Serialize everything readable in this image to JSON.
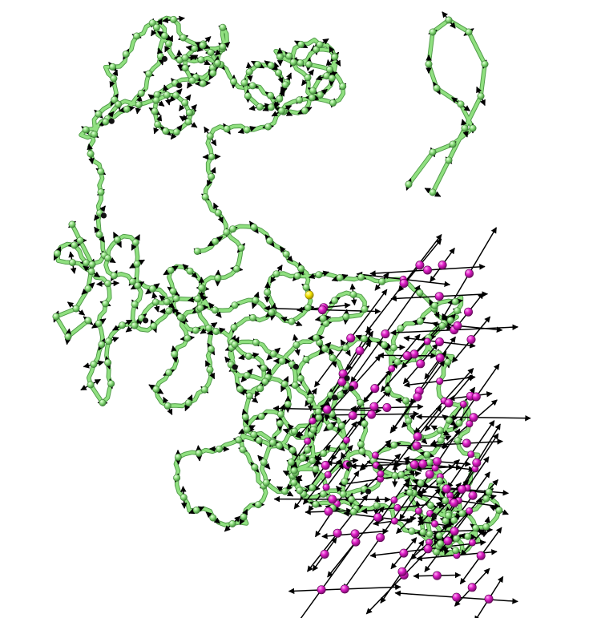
{
  "figure": {
    "subject": "protein-backbone-vector-field",
    "colors": {
      "background": "#ffffff",
      "backbone_tube": "#90e080",
      "backbone_bead": "#90e080",
      "bead_outline": "#3f7a38",
      "highlight_bead": "#e020c8",
      "focus_bead": "#f5e400",
      "arrow": "#000000"
    }
  }
}
